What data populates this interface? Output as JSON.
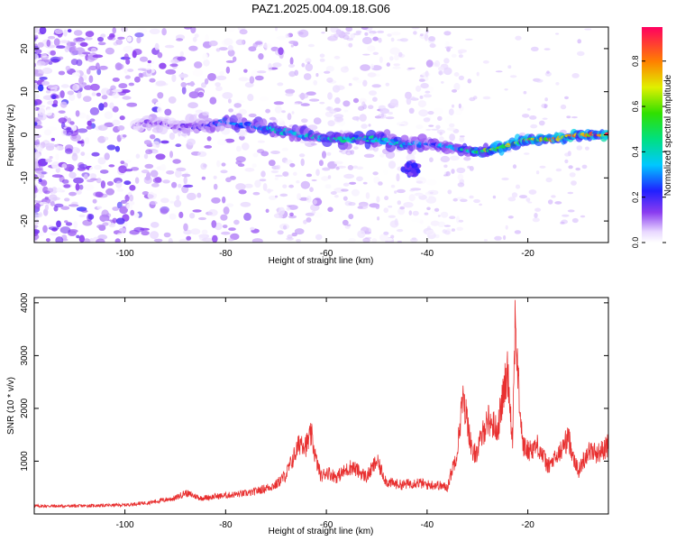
{
  "title": "PAZ1.2025.004.09.18.G06",
  "chart_data": [
    {
      "type": "heatmap",
      "xlabel": "Height of straight line (km)",
      "ylabel": "Frequency (Hz)",
      "xlim": [
        -118,
        -4
      ],
      "ylim": [
        -25,
        25
      ],
      "xticks": [
        -100,
        -80,
        -60,
        -40,
        -20
      ],
      "yticks": [
        -20,
        -10,
        0,
        10,
        20
      ],
      "colorbar": {
        "label": "Normalized spectral amplitude",
        "range": [
          0,
          0.95
        ],
        "ticks": [
          0.0,
          0.2,
          0.4,
          0.6,
          0.8
        ]
      },
      "ridge": {
        "x": [
          -98,
          -95,
          -90,
          -85,
          -80,
          -75,
          -70,
          -65,
          -60,
          -55,
          -50,
          -45,
          -40,
          -35,
          -30,
          -25,
          -20,
          -15,
          -10,
          -5
        ],
        "frequency": [
          2,
          3,
          2,
          2,
          3,
          2,
          1,
          0,
          -1,
          -1,
          -1,
          -2,
          -2,
          -3,
          -4,
          -3,
          -1,
          -1,
          0,
          0
        ],
        "amplitude": [
          0.1,
          0.15,
          0.15,
          0.2,
          0.3,
          0.35,
          0.4,
          0.4,
          0.45,
          0.45,
          0.45,
          0.4,
          0.3,
          0.4,
          0.6,
          0.7,
          0.75,
          0.8,
          0.85,
          0.9
        ]
      }
    },
    {
      "type": "line",
      "xlabel": "Height of straight line (km)",
      "ylabel": "SNR (10 * v/v)",
      "xlim": [
        -118,
        -4
      ],
      "ylim": [
        0,
        4100
      ],
      "xticks": [
        -100,
        -80,
        -60,
        -40,
        -20
      ],
      "yticks": [
        1000,
        2000,
        3000,
        4000
      ],
      "series": [
        {
          "color": "#e83030",
          "x": [
            -118,
            -110,
            -100,
            -95,
            -90,
            -88,
            -85,
            -80,
            -75,
            -70,
            -68,
            -65,
            -64,
            -63,
            -62,
            -61,
            -60,
            -58,
            -55,
            -52,
            -50,
            -48,
            -45,
            -42,
            -40,
            -38,
            -36,
            -34,
            -33,
            -32,
            -31,
            -30,
            -28,
            -26,
            -25,
            -24,
            -23,
            -22.5,
            -22,
            -21,
            -20,
            -18,
            -16,
            -14,
            -12,
            -10,
            -8,
            -6,
            -4
          ],
          "y": [
            150,
            150,
            170,
            220,
            300,
            400,
            300,
            350,
            400,
            550,
            750,
            1400,
            1300,
            1500,
            1000,
            700,
            800,
            700,
            900,
            700,
            1000,
            600,
            550,
            600,
            550,
            550,
            500,
            1200,
            2150,
            1800,
            1100,
            1200,
            1800,
            1600,
            2200,
            2700,
            1400,
            3900,
            2600,
            1300,
            1200,
            1300,
            900,
            1100,
            1450,
            800,
            1200,
            1150,
            1300
          ]
        }
      ]
    }
  ]
}
